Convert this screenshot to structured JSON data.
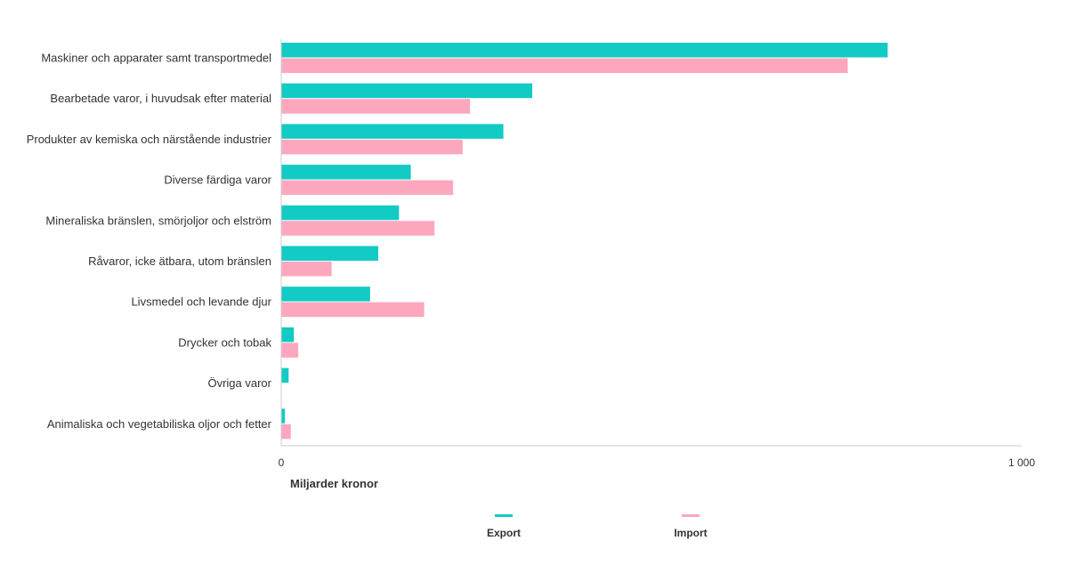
{
  "chart_data": {
    "type": "bar",
    "orientation": "horizontal",
    "categories": [
      "Maskiner och apparater samt transportmedel",
      "Bearbetade varor, i huvudsak efter material",
      "Produkter av kemiska och närstående industrier",
      "Diverse färdiga varor",
      "Mineraliska bränslen, smörjoljor och elström",
      "Råvaror, icke ätbara, utom bränslen",
      "Livsmedel och levande djur",
      "Drycker och tobak",
      "Övriga varor",
      "Animaliska och vegetabiliska oljor och fetter"
    ],
    "series": [
      {
        "name": "Export",
        "color": "#12cbc4",
        "values": [
          819,
          339,
          300,
          175,
          159,
          131,
          120,
          17,
          10,
          5
        ]
      },
      {
        "name": "Import",
        "color": "#fda7bf",
        "values": [
          765,
          255,
          245,
          232,
          207,
          68,
          193,
          23,
          0,
          13
        ]
      }
    ],
    "xlim": [
      0,
      1000
    ],
    "x_ticks": [
      "0",
      "1 000"
    ],
    "xlabel": "Miljarder kronor",
    "title": "",
    "ylabel": "",
    "grid": false,
    "legend_position": "bottom-center"
  }
}
